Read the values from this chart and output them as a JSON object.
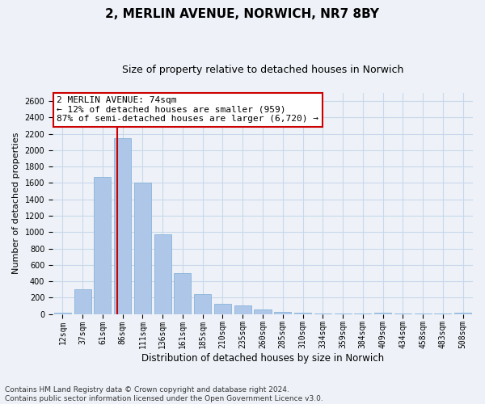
{
  "title": "2, MERLIN AVENUE, NORWICH, NR7 8BY",
  "subtitle": "Size of property relative to detached houses in Norwich",
  "xlabel": "Distribution of detached houses by size in Norwich",
  "ylabel": "Number of detached properties",
  "categories": [
    "12sqm",
    "37sqm",
    "61sqm",
    "86sqm",
    "111sqm",
    "136sqm",
    "161sqm",
    "185sqm",
    "210sqm",
    "235sqm",
    "260sqm",
    "285sqm",
    "310sqm",
    "334sqm",
    "359sqm",
    "384sqm",
    "409sqm",
    "434sqm",
    "458sqm",
    "483sqm",
    "508sqm"
  ],
  "values": [
    20,
    300,
    1670,
    2150,
    1600,
    970,
    500,
    245,
    120,
    100,
    50,
    25,
    15,
    10,
    8,
    5,
    20,
    5,
    5,
    5,
    20
  ],
  "bar_color": "#aec6e8",
  "bar_edge_color": "#7aadd4",
  "grid_color": "#c8d8ea",
  "background_color": "#eef2f8",
  "vline_color": "#cc0000",
  "annotation_text": "2 MERLIN AVENUE: 74sqm\n← 12% of detached houses are smaller (959)\n87% of semi-detached houses are larger (6,720) →",
  "annotation_box_color": "#ffffff",
  "annotation_box_edge": "#cc0000",
  "ylim": [
    0,
    2700
  ],
  "yticks": [
    0,
    200,
    400,
    600,
    800,
    1000,
    1200,
    1400,
    1600,
    1800,
    2000,
    2200,
    2400,
    2600
  ],
  "footnote": "Contains HM Land Registry data © Crown copyright and database right 2024.\nContains public sector information licensed under the Open Government Licence v3.0.",
  "title_fontsize": 11,
  "subtitle_fontsize": 9,
  "xlabel_fontsize": 8.5,
  "ylabel_fontsize": 8,
  "tick_fontsize": 7,
  "annotation_fontsize": 8,
  "footnote_fontsize": 6.5
}
